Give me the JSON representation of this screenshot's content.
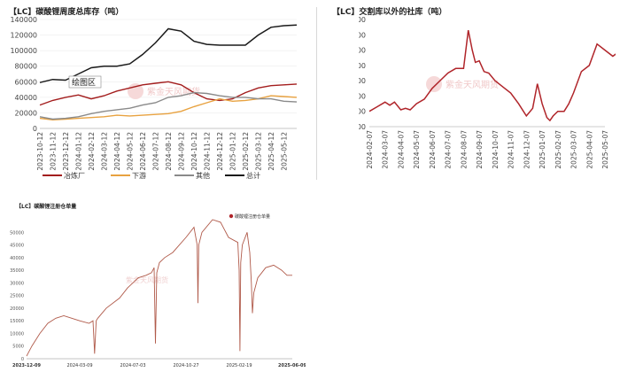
{
  "charts": {
    "inventory": {
      "title": "【LC】碳酸锂周度总库存（吨）",
      "tooltip_label": "绘图区",
      "watermark": "紫金天风期货",
      "legend": [
        "冶炼厂",
        "下游",
        "其他",
        "总计"
      ],
      "colors": {
        "smelter": "#a31d1d",
        "downstream": "#e8a240",
        "other": "#8a8a8a",
        "total": "#1a1a1a"
      }
    },
    "social": {
      "title": "【LC】交割库以外的社库（吨）",
      "watermark": "紫金天风期货",
      "color": "#b0252a"
    },
    "warrant": {
      "title": "【LC】碳酸锂注册仓单量",
      "legend": [
        "碳酸锂注册仓单量"
      ],
      "watermark": "紫金天风期货",
      "color": "#b05a4a"
    }
  },
  "chart_data": [
    {
      "type": "line",
      "title": "【LC】碳酸锂周度总库存（吨）",
      "ylim": [
        0,
        140000
      ],
      "yticks": [
        0,
        20000,
        40000,
        60000,
        80000,
        100000,
        120000,
        140000
      ],
      "x": [
        "2023-10-12",
        "2023-11-12",
        "2023-12-12",
        "2024-01-12",
        "2024-02-12",
        "2024-03-12",
        "2024-04-12",
        "2024-05-12",
        "2024-06-12",
        "2024-07-12",
        "2024-08-12",
        "2024-09-12",
        "2024-10-12",
        "2024-11-12",
        "2024-12-12",
        "2025-01-12",
        "2025-02-12",
        "2025-03-12",
        "2025-04-12",
        "2025-05-12",
        "2025-06-12"
      ],
      "xticks": [
        "2023-10-12",
        "2023-11-12",
        "2023-12-12",
        "2024-01-12",
        "2024-02-12",
        "2024-03-12",
        "2024-04-12",
        "2024-05-12",
        "2024-06-12",
        "2024-07-12",
        "2024-08-12",
        "2024-09-12",
        "2024-10-12",
        "2024-11-12",
        "2024-12-12",
        "2025-01-12",
        "2025-02-12",
        "2025-03-12",
        "2025-04-12",
        "2025-05-12"
      ],
      "series": [
        {
          "name": "冶炼厂",
          "values": [
            30000,
            36000,
            40000,
            43000,
            38000,
            42000,
            48000,
            52000,
            56000,
            58000,
            60000,
            56000,
            46000,
            38000,
            36000,
            38000,
            46000,
            52000,
            55000,
            56000,
            57000
          ]
        },
        {
          "name": "下游",
          "values": [
            13000,
            11000,
            12000,
            13000,
            14000,
            15000,
            17000,
            16000,
            17000,
            18000,
            19000,
            22000,
            28000,
            33000,
            38000,
            35000,
            36000,
            38000,
            42000,
            41000,
            40000
          ]
        },
        {
          "name": "其他",
          "values": [
            15000,
            12000,
            13000,
            15000,
            19000,
            22000,
            24000,
            26000,
            30000,
            33000,
            40000,
            42000,
            46000,
            45000,
            42000,
            40000,
            40000,
            38000,
            38000,
            35000,
            34000
          ]
        },
        {
          "name": "总计",
          "values": [
            59000,
            63000,
            62000,
            70000,
            78000,
            80000,
            80000,
            83000,
            95000,
            110000,
            128000,
            125000,
            112000,
            108000,
            107000,
            107000,
            107000,
            120000,
            130000,
            132000,
            133000
          ]
        }
      ]
    },
    {
      "type": "line",
      "title": "【LC】交割库以外的社库（吨）",
      "ylim": [
        50000,
        120000
      ],
      "yticks": [
        50000,
        60000,
        70000,
        80000,
        90000,
        100000,
        110000,
        120000
      ],
      "xticks": [
        "2024-02-07",
        "2024-03-07",
        "2024-04-07",
        "2024-05-07",
        "2024-06-07",
        "2024-07-07",
        "2024-08-07",
        "2024-09-07",
        "2024-10-07",
        "2024-11-07",
        "2024-12-07",
        "2025-01-07",
        "2025-02-07",
        "2025-03-07",
        "2025-04-07",
        "2025-05-07"
      ],
      "series": [
        {
          "name": "社库",
          "x": [
            0,
            0.5,
            1,
            1.3,
            1.6,
            2,
            2.3,
            2.6,
            3,
            3.5,
            4,
            4.5,
            5,
            5.5,
            6,
            6.3,
            6.55,
            6.75,
            7,
            7.3,
            7.6,
            8,
            8.5,
            9,
            9.5,
            10,
            10.4,
            10.7,
            11,
            11.3,
            11.5,
            11.7,
            12,
            12.4,
            12.7,
            13,
            13.5,
            14,
            14.5,
            15,
            15.5,
            15.9
          ],
          "values": [
            60000,
            63000,
            66000,
            64000,
            66000,
            61000,
            62000,
            61000,
            65000,
            68000,
            75000,
            80000,
            85000,
            88000,
            88000,
            113000,
            100000,
            92000,
            93000,
            86000,
            85000,
            80000,
            76000,
            72000,
            65000,
            57000,
            62000,
            78000,
            65000,
            56000,
            54000,
            57000,
            60000,
            60000,
            65000,
            72000,
            86000,
            90000,
            104000,
            100000,
            96000,
            99000
          ]
        }
      ]
    },
    {
      "type": "line",
      "title": "【LC】碳酸锂注册仓单量",
      "ylim": [
        0,
        55000
      ],
      "yticks": [
        0,
        5000,
        10000,
        15000,
        20000,
        25000,
        30000,
        35000,
        40000,
        45000,
        50000
      ],
      "xticks": [
        "2023-12-09",
        "2024-03-09",
        "2024-07-03",
        "2024-10-27",
        "2025-02-19",
        "2025-06-09"
      ],
      "series": [
        {
          "name": "碳酸锂注册仓单量",
          "x": [
            0,
            0.02,
            0.05,
            0.08,
            0.11,
            0.14,
            0.17,
            0.2,
            0.235,
            0.25,
            0.256,
            0.262,
            0.268,
            0.3,
            0.35,
            0.38,
            0.4,
            0.42,
            0.45,
            0.47,
            0.48,
            0.485,
            0.49,
            0.495,
            0.5,
            0.52,
            0.55,
            0.6,
            0.63,
            0.642,
            0.645,
            0.648,
            0.66,
            0.7,
            0.73,
            0.76,
            0.795,
            0.8,
            0.803,
            0.806,
            0.812,
            0.83,
            0.84,
            0.846,
            0.85,
            0.855,
            0.86,
            0.87,
            0.9,
            0.93,
            0.96,
            0.98,
            1.0
          ],
          "values": [
            1000,
            5000,
            10000,
            14000,
            16000,
            17000,
            16000,
            15000,
            14000,
            15000,
            2000,
            15000,
            16000,
            20000,
            24000,
            28000,
            30000,
            32000,
            33000,
            34000,
            36000,
            6000,
            34000,
            36000,
            38000,
            40000,
            42000,
            48000,
            52000,
            45000,
            22000,
            45000,
            50000,
            55000,
            54000,
            48000,
            46000,
            35000,
            3000,
            38000,
            45000,
            50000,
            42000,
            30000,
            18000,
            26000,
            28000,
            32000,
            36000,
            37000,
            35000,
            33000,
            33000
          ]
        }
      ]
    }
  ]
}
